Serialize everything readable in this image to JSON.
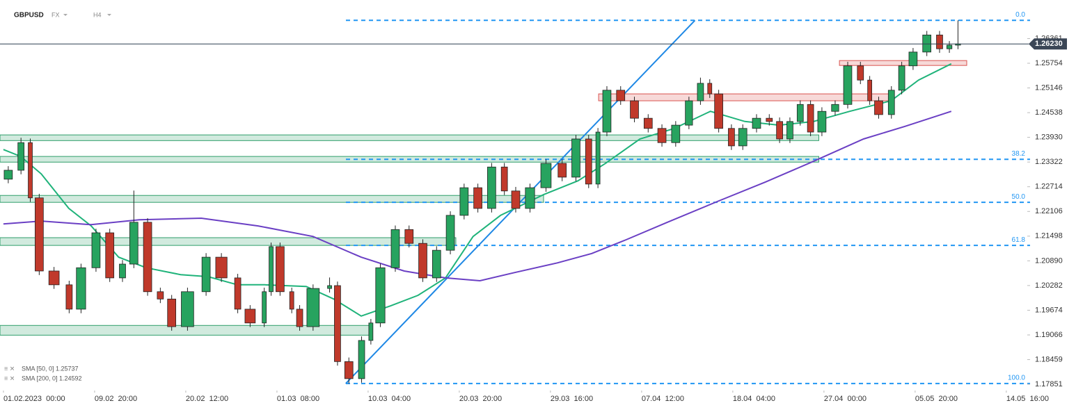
{
  "chart_data": {
    "type": "candlestick",
    "symbol": "GBPUSD",
    "market": "FX",
    "interval": "H4",
    "xlim": [
      -2,
      613
    ],
    "ylim": [
      1.17697,
      1.27311
    ],
    "xticks": [
      {
        "value": 0,
        "label": "01.02.2023  00:00"
      },
      {
        "value": 53,
        "label": "09.02  20:00"
      },
      {
        "value": 106,
        "label": "20.02  12:00"
      },
      {
        "value": 159,
        "label": "01.03  08:00"
      },
      {
        "value": 212,
        "label": "10.03  04:00"
      },
      {
        "value": 265,
        "label": "20.03  20:00"
      },
      {
        "value": 318,
        "label": "29.03  16:00"
      },
      {
        "value": 371,
        "label": "07.04  12:00"
      },
      {
        "value": 424,
        "label": "18.04  04:00"
      },
      {
        "value": 477,
        "label": "27.04  00:00"
      },
      {
        "value": 530,
        "label": "05.05  20:00"
      },
      {
        "value": 583,
        "label": "14.05  16:00"
      }
    ],
    "yticks": [
      1.26361,
      1.25754,
      1.25146,
      1.24538,
      {
        "value": 1.2393,
        "label": "1.23930"
      },
      1.23322,
      1.22714,
      1.22106,
      1.21498,
      {
        "value": 1.2089,
        "label": "1.20890"
      },
      1.20282,
      1.19674,
      1.19066,
      1.18459,
      1.17851
    ],
    "last_price": {
      "value": 1.2623,
      "label": "1.26230"
    },
    "up_color": "#27a35f",
    "down_color": "#c0392b",
    "x": [
      0,
      8,
      14,
      18,
      26,
      36,
      42,
      51,
      59,
      67,
      73,
      81,
      89,
      95,
      103,
      115,
      123,
      134,
      140,
      150,
      154,
      158,
      166,
      170,
      176,
      188,
      192,
      198,
      206,
      212,
      216,
      225,
      233,
      241,
      249,
      257,
      265,
      273,
      281,
      289,
      295,
      303,
      312,
      322,
      330,
      338,
      344,
      348,
      356,
      364,
      372,
      380,
      388,
      396,
      403,
      409,
      413,
      421,
      427,
      435,
      443,
      449,
      455,
      461,
      467,
      473,
      481,
      488,
      496,
      502,
      506,
      514,
      520,
      526,
      534,
      542,
      548,
      553
    ],
    "open": [
      1.229,
      1.2312,
      1.238,
      1.2244,
      1.2064,
      1.203,
      1.197,
      1.2072,
      1.2158,
      1.2047,
      1.2081,
      1.2184,
      1.2013,
      1.1995,
      1.1927,
      1.2013,
      1.2098,
      1.2047,
      1.197,
      1.1936,
      1.2013,
      1.2124,
      1.2013,
      1.197,
      1.1927,
      1.2021,
      1.2028,
      1.1841,
      1.1799,
      1.1893,
      1.1936,
      1.2072,
      1.2166,
      1.2132,
      1.2047,
      1.2115,
      1.2201,
      1.2269,
      1.2218,
      1.232,
      1.2261,
      1.2218,
      1.2269,
      1.2329,
      1.2295,
      1.2389,
      1.2278,
      1.2406,
      1.2509,
      1.2483,
      1.244,
      1.2415,
      1.238,
      1.2423,
      1.2483,
      1.2526,
      1.25,
      1.2415,
      1.2372,
      1.2415,
      1.244,
      1.2432,
      1.2389,
      1.2432,
      1.2474,
      1.2406,
      1.2457,
      1.2474,
      1.2569,
      1.2534,
      1.2483,
      1.2449,
      1.2509,
      1.2569,
      1.2603,
      1.2645,
      1.2611,
      1.262
    ],
    "high": [
      1.2322,
      1.2392,
      1.239,
      1.2254,
      1.2074,
      1.204,
      1.2082,
      1.2168,
      1.2168,
      1.2091,
      1.2262,
      1.2194,
      1.2023,
      1.2005,
      1.2023,
      1.2108,
      1.2108,
      1.2057,
      1.198,
      1.2023,
      1.2134,
      1.2134,
      1.2023,
      1.198,
      1.2031,
      1.2048,
      1.2038,
      1.1851,
      1.1903,
      1.1946,
      1.2082,
      1.2176,
      1.2176,
      1.2142,
      1.2125,
      1.2211,
      1.2279,
      1.2279,
      1.233,
      1.233,
      1.2271,
      1.2279,
      1.2339,
      1.2339,
      1.2399,
      1.2399,
      1.2416,
      1.2519,
      1.2519,
      1.2493,
      1.245,
      1.2425,
      1.2433,
      1.2493,
      1.254,
      1.2536,
      1.251,
      1.2425,
      1.2425,
      1.245,
      1.245,
      1.2442,
      1.2442,
      1.2484,
      1.2484,
      1.2467,
      1.2484,
      1.2579,
      1.2579,
      1.2544,
      1.2493,
      1.2519,
      1.2579,
      1.2613,
      1.2655,
      1.2655,
      1.263,
      1.2681
    ],
    "low": [
      1.228,
      1.2302,
      1.2234,
      1.2054,
      1.202,
      1.196,
      1.196,
      1.2062,
      1.2037,
      1.2037,
      1.2071,
      1.2003,
      1.1985,
      1.1917,
      1.1917,
      1.2003,
      1.2037,
      1.196,
      1.1926,
      1.1926,
      1.2003,
      1.2003,
      1.196,
      1.1917,
      1.1917,
      1.2011,
      1.1831,
      1.1787,
      1.1789,
      1.1883,
      1.1926,
      1.2062,
      1.2122,
      1.2037,
      1.2037,
      1.2105,
      1.2191,
      1.2208,
      1.2208,
      1.2251,
      1.2208,
      1.2208,
      1.2259,
      1.2285,
      1.2285,
      1.2268,
      1.2268,
      1.2396,
      1.2473,
      1.243,
      1.2405,
      1.237,
      1.237,
      1.2413,
      1.2473,
      1.249,
      1.2405,
      1.2362,
      1.2362,
      1.2405,
      1.2422,
      1.2379,
      1.2379,
      1.2422,
      1.2396,
      1.2396,
      1.2447,
      1.2464,
      1.2524,
      1.2473,
      1.2439,
      1.2439,
      1.2499,
      1.2559,
      1.2593,
      1.2601,
      1.2601,
      1.261
    ],
    "close": [
      1.2312,
      1.238,
      1.2244,
      1.2064,
      1.203,
      1.197,
      1.2072,
      1.2158,
      1.2047,
      1.2081,
      1.2184,
      1.2013,
      1.1995,
      1.1927,
      1.2013,
      1.2098,
      1.2047,
      1.197,
      1.1936,
      1.2013,
      1.2124,
      1.2013,
      1.197,
      1.1927,
      1.2021,
      1.2028,
      1.1841,
      1.1799,
      1.1893,
      1.1936,
      1.2072,
      1.2166,
      1.2132,
      1.2047,
      1.2115,
      1.2201,
      1.2269,
      1.2218,
      1.232,
      1.2261,
      1.2218,
      1.2269,
      1.2329,
      1.2295,
      1.2389,
      1.2278,
      1.2406,
      1.2509,
      1.2483,
      1.244,
      1.2415,
      1.238,
      1.2423,
      1.2483,
      1.2526,
      1.25,
      1.2415,
      1.2372,
      1.2415,
      1.244,
      1.2432,
      1.2389,
      1.2432,
      1.2474,
      1.2406,
      1.2457,
      1.2474,
      1.2569,
      1.2534,
      1.2483,
      1.2449,
      1.2509,
      1.2569,
      1.2603,
      1.2645,
      1.2611,
      1.262,
      1.2623
    ],
    "series": [
      {
        "name": "SMA [50, 0] 1.25737",
        "color": "#1fb37a",
        "x": [
          0,
          10,
          22,
          38,
          51,
          67,
          83,
          103,
          119,
          136,
          152,
          176,
          192,
          208,
          225,
          241,
          257,
          273,
          289,
          314,
          334,
          350,
          370,
          390,
          411,
          431,
          451,
          471,
          492,
          516,
          532,
          551
        ],
        "values": [
          1.2363,
          1.2346,
          1.2303,
          1.2218,
          1.2175,
          1.2098,
          1.2072,
          1.2055,
          1.205,
          1.203,
          1.203,
          1.2026,
          1.1995,
          1.1953,
          1.1978,
          1.2004,
          1.2047,
          1.2149,
          1.2201,
          1.2252,
          1.2286,
          1.2329,
          1.2389,
          1.2415,
          1.2457,
          1.2432,
          1.2423,
          1.2432,
          1.2457,
          1.2483,
          1.2534,
          1.2574
        ]
      },
      {
        "name": "SMA [200, 0] 1.24592",
        "color": "#6a3fc4",
        "x": [
          0,
          22,
          51,
          79,
          115,
          148,
          180,
          208,
          233,
          257,
          277,
          297,
          322,
          342,
          362,
          386,
          415,
          443,
          471,
          500,
          524,
          551
        ],
        "values": [
          1.218,
          1.2187,
          1.2178,
          1.219,
          1.2194,
          1.2175,
          1.2149,
          1.2098,
          1.2064,
          1.2047,
          1.204,
          1.206,
          1.2084,
          1.2107,
          1.2141,
          1.2184,
          1.2235,
          1.2283,
          1.2334,
          1.2389,
          1.242,
          1.2457
        ]
      }
    ],
    "zones": [
      {
        "x": [
          -2,
          474
        ],
        "y": [
          1.2385,
          1.2399
        ],
        "color": "#2e9e6a"
      },
      {
        "x": [
          -2,
          474
        ],
        "y": [
          1.2332,
          1.2346
        ],
        "color": "#2e9e6a"
      },
      {
        "x": [
          -2,
          314
        ],
        "y": [
          1.2233,
          1.225
        ],
        "color": "#2e9e6a"
      },
      {
        "x": [
          -2,
          263
        ],
        "y": [
          1.2127,
          1.2146
        ],
        "color": "#2e9e6a"
      },
      {
        "x": [
          -2,
          214
        ],
        "y": [
          1.1906,
          1.193
        ],
        "color": "#2e9e6a"
      },
      {
        "x": [
          346,
          517
        ],
        "y": [
          1.2483,
          1.25
        ],
        "color": "#d9534f"
      },
      {
        "x": [
          486,
          560
        ],
        "y": [
          1.257,
          1.2582
        ],
        "color": "#d9534f"
      }
    ],
    "trendline": {
      "x": [
        199,
        402
      ],
      "values": [
        1.1787,
        1.2681
      ],
      "color": "#1e88e5"
    },
    "fib_color": "#2196f3",
    "fib_levels": [
      {
        "value": 1.2681,
        "label": "0.0"
      },
      {
        "value": 1.2339,
        "label": "38.2"
      },
      {
        "value": 1.2233,
        "label": "50.0"
      },
      {
        "value": 1.2127,
        "label": "61.8"
      },
      {
        "value": 1.1787,
        "label": "100.0"
      }
    ]
  }
}
